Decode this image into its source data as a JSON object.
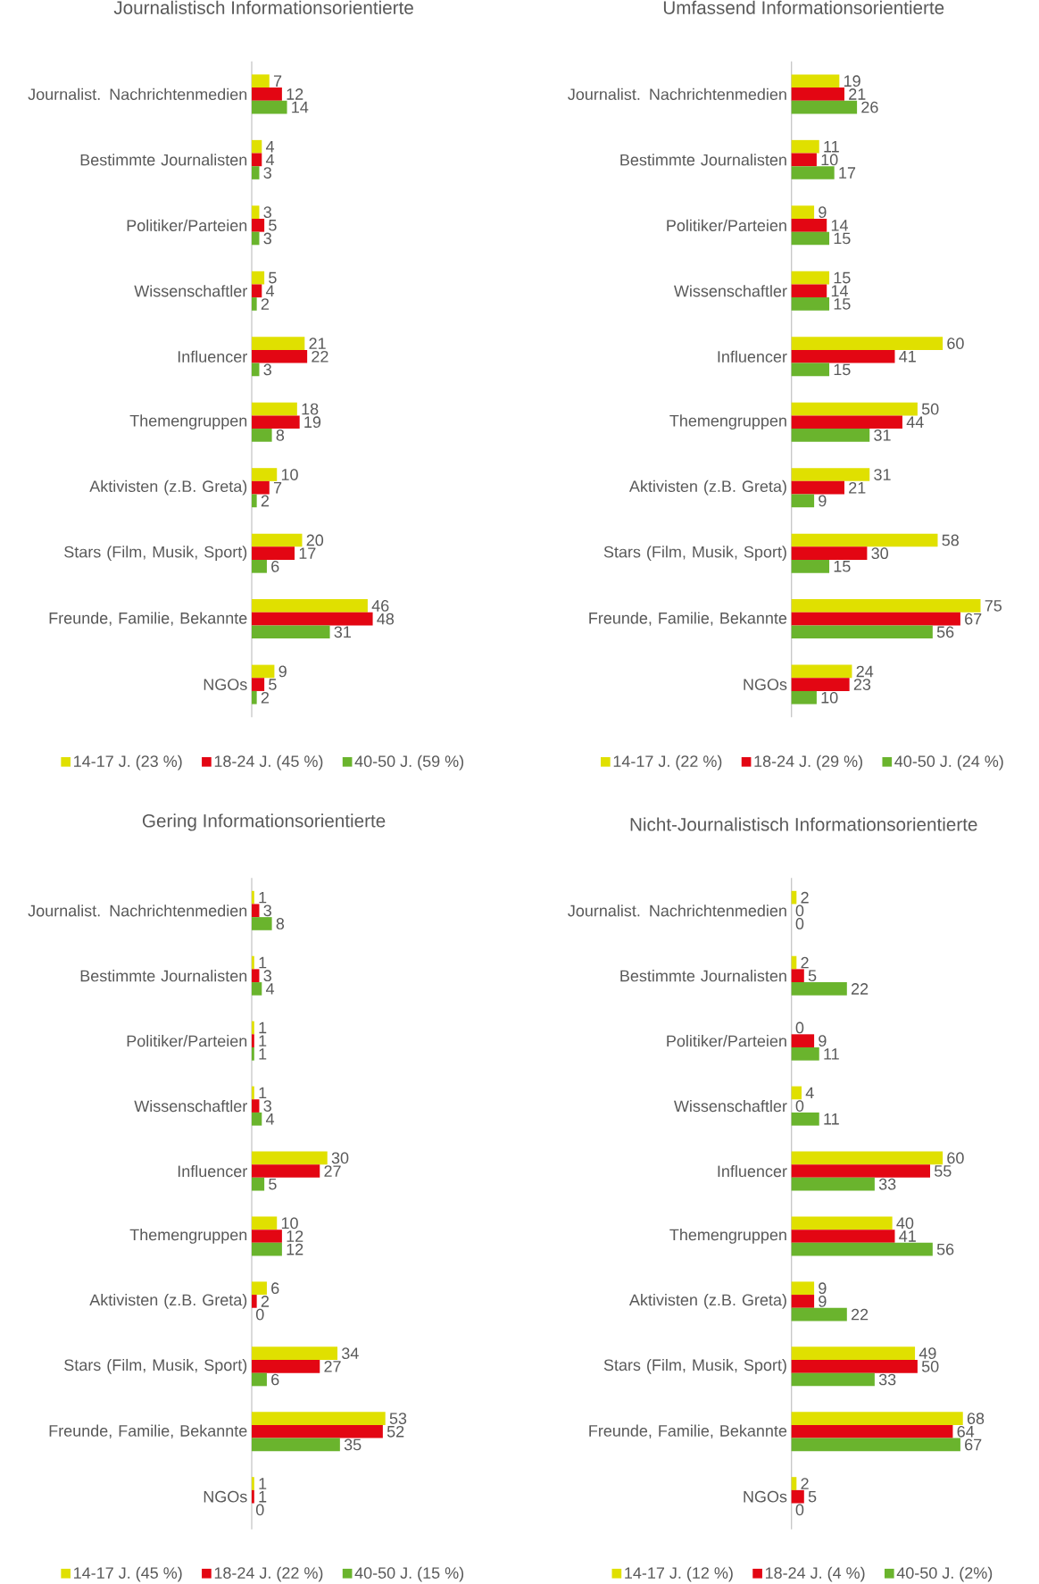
{
  "chart_data": [
    {
      "type": "bar",
      "orientation": "horizontal",
      "title": "Journalistisch Informationsorientierte",
      "categories": [
        "Journalist. Nachrichtenmedien",
        "Bestimmte Journalisten",
        "Politiker/Parteien",
        "Wissenschaftler",
        "Influencer",
        "Themengruppen",
        "Aktivisten (z.B. Greta)",
        "Stars (Film, Musik, Sport)",
        "Freunde, Familie, Bekannte",
        "NGOs"
      ],
      "data_labels": true,
      "legend": "bottom",
      "series": [
        {
          "name": "14-17 J. (23 %)",
          "color": "#e0e000",
          "values": [
            7,
            4,
            3,
            5,
            21,
            18,
            10,
            20,
            46,
            9
          ]
        },
        {
          "name": "18-24 J. (45 %)",
          "color": "#e30613",
          "values": [
            12,
            4,
            5,
            4,
            22,
            19,
            7,
            17,
            48,
            5
          ]
        },
        {
          "name": "40-50 J. (59 %)",
          "color": "#6ab42d",
          "values": [
            14,
            3,
            3,
            2,
            3,
            8,
            2,
            6,
            31,
            2
          ]
        }
      ]
    },
    {
      "type": "bar",
      "orientation": "horizontal",
      "title": "Umfassend Informationsorientierte",
      "categories": [
        "Journalist. Nachrichtenmedien",
        "Bestimmte Journalisten",
        "Politiker/Parteien",
        "Wissenschaftler",
        "Influencer",
        "Themengruppen",
        "Aktivisten (z.B. Greta)",
        "Stars (Film, Musik, Sport)",
        "Freunde, Familie, Bekannte",
        "NGOs"
      ],
      "data_labels": true,
      "legend": "bottom",
      "series": [
        {
          "name": "14-17 J. (22 %)",
          "color": "#e0e000",
          "values": [
            19,
            11,
            9,
            15,
            60,
            50,
            31,
            58,
            75,
            24
          ]
        },
        {
          "name": "18-24 J. (29 %)",
          "color": "#e30613",
          "values": [
            21,
            10,
            14,
            14,
            41,
            44,
            21,
            30,
            67,
            23
          ]
        },
        {
          "name": "40-50 J. (24 %)",
          "color": "#6ab42d",
          "values": [
            26,
            17,
            15,
            15,
            15,
            31,
            9,
            15,
            56,
            10
          ]
        }
      ]
    },
    {
      "type": "bar",
      "orientation": "horizontal",
      "title": "Gering Informationsorientierte",
      "categories": [
        "Journalist. Nachrichtenmedien",
        "Bestimmte Journalisten",
        "Politiker/Parteien",
        "Wissenschaftler",
        "Influencer",
        "Themengruppen",
        "Aktivisten (z.B. Greta)",
        "Stars (Film, Musik, Sport)",
        "Freunde, Familie, Bekannte",
        "NGOs"
      ],
      "data_labels": true,
      "legend": "bottom",
      "series": [
        {
          "name": "14-17 J. (45 %)",
          "color": "#e0e000",
          "values": [
            1,
            1,
            1,
            1,
            30,
            10,
            6,
            34,
            53,
            1
          ]
        },
        {
          "name": "18-24 J. (22 %)",
          "color": "#e30613",
          "values": [
            3,
            3,
            1,
            3,
            27,
            12,
            2,
            27,
            52,
            1
          ]
        },
        {
          "name": "40-50 J. (15 %)",
          "color": "#6ab42d",
          "values": [
            8,
            4,
            1,
            4,
            5,
            12,
            0,
            6,
            35,
            0
          ]
        }
      ]
    },
    {
      "type": "bar",
      "orientation": "horizontal",
      "title": "Nicht-Journalistisch Informationsorientierte",
      "categories": [
        "Journalist. Nachrichtenmedien",
        "Bestimmte Journalisten",
        "Politiker/Parteien",
        "Wissenschaftler",
        "Influencer",
        "Themengruppen",
        "Aktivisten (z.B. Greta)",
        "Stars (Film, Musik, Sport)",
        "Freunde, Familie, Bekannte",
        "NGOs"
      ],
      "data_labels": true,
      "legend": "bottom",
      "series": [
        {
          "name": "14-17 J. (12 %)",
          "color": "#e0e000",
          "values": [
            2,
            2,
            0,
            4,
            60,
            40,
            9,
            49,
            68,
            2
          ]
        },
        {
          "name": "18-24 J. (4 %)",
          "color": "#e30613",
          "values": [
            0,
            5,
            9,
            0,
            55,
            41,
            9,
            50,
            64,
            5
          ]
        },
        {
          "name": "40-50 J. (2%)",
          "color": "#6ab42d",
          "values": [
            0,
            22,
            11,
            11,
            33,
            56,
            22,
            33,
            67,
            0
          ]
        }
      ]
    }
  ]
}
